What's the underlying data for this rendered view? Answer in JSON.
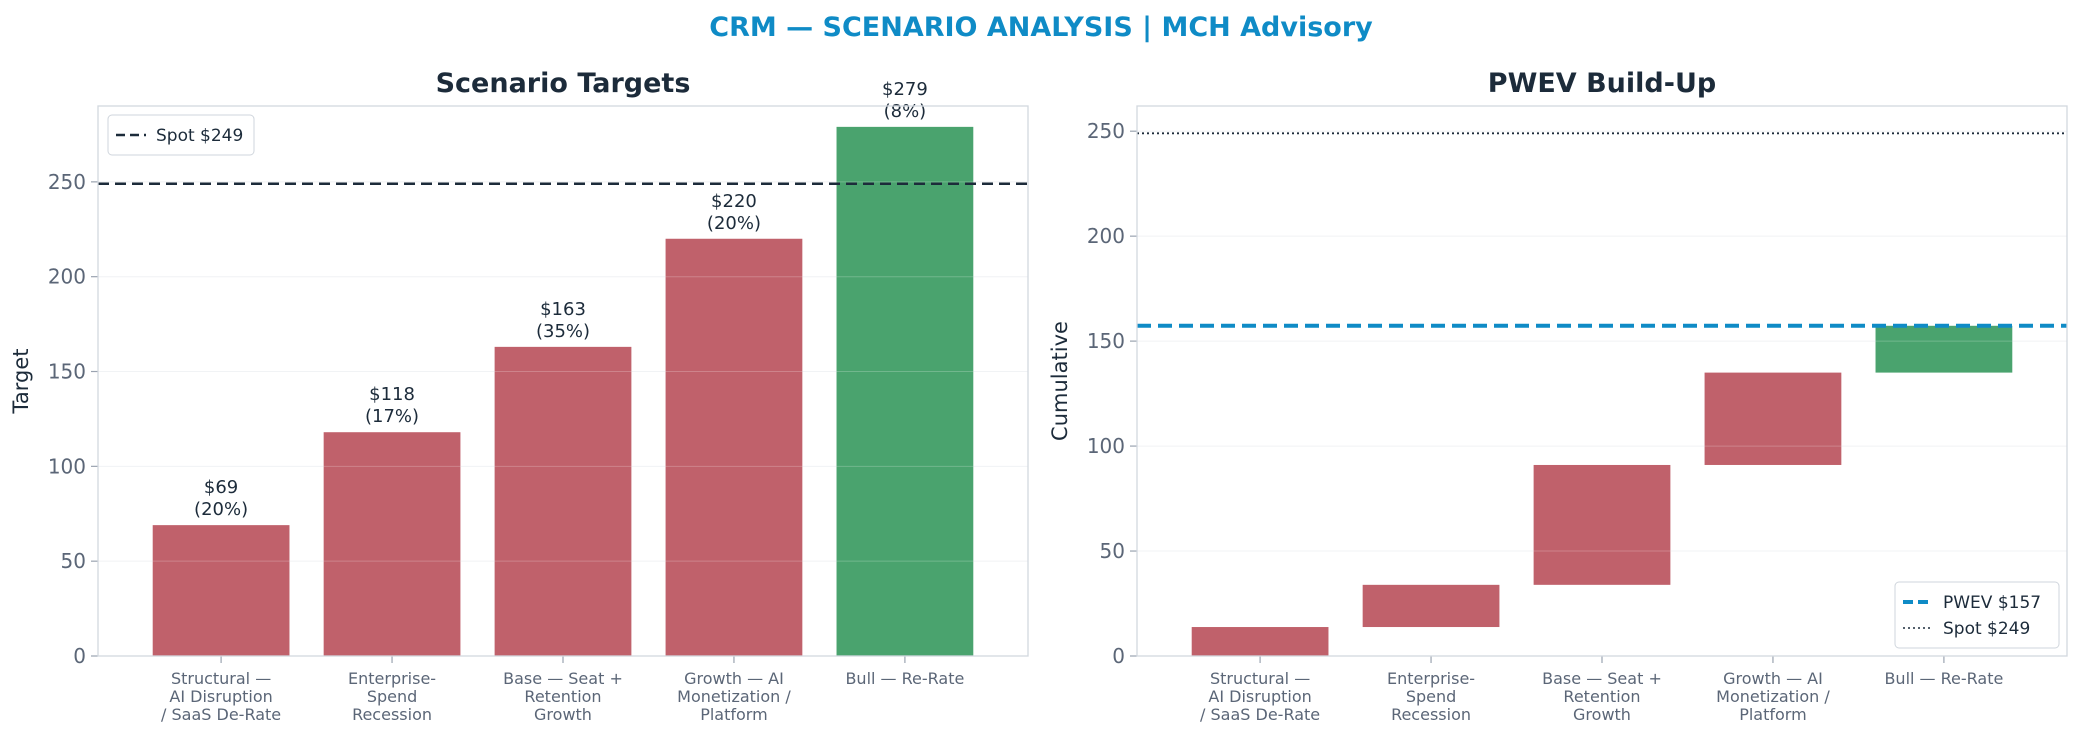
{
  "suptitle": "CRM — SCENARIO ANALYSIS | MCH Advisory",
  "colors": {
    "bear": "#c0616b",
    "bull": "#4aa36e",
    "spot": "#1c2b3a",
    "pwev": "#0f8bc6",
    "title": "#0f8bc6"
  },
  "chart_data": [
    {
      "type": "bar",
      "title": "Scenario Targets",
      "ylabel": "Target",
      "xlabel": "",
      "ylim": [
        0,
        290
      ],
      "yticks": [
        0,
        50,
        100,
        150,
        200,
        250
      ],
      "grid": true,
      "legend_position": "top-left",
      "categories": [
        [
          "Structural —",
          "AI Disruption",
          "/ SaaS De-Rate"
        ],
        [
          "Enterprise-",
          "Spend",
          "Recession"
        ],
        [
          "Base — Seat +",
          "Retention",
          "Growth"
        ],
        [
          "Growth — AI",
          "Monetization /",
          "Platform"
        ],
        [
          "Bull — Re-Rate"
        ]
      ],
      "values": [
        69,
        118,
        163,
        220,
        279
      ],
      "probabilities": [
        20,
        17,
        35,
        20,
        8
      ],
      "bar_labels": [
        [
          "$69",
          "(20%)"
        ],
        [
          "$118",
          "(17%)"
        ],
        [
          "$163",
          "(35%)"
        ],
        [
          "$220",
          "(20%)"
        ],
        [
          "$279",
          "(8%)"
        ]
      ],
      "bar_colors": [
        "bear",
        "bear",
        "bear",
        "bear",
        "bull"
      ],
      "reference_lines": [
        {
          "value": 249,
          "label": "Spot $249",
          "style": "dashed",
          "color": "spot"
        }
      ]
    },
    {
      "type": "bar",
      "subtype": "waterfall",
      "title": "PWEV Build-Up",
      "ylabel": "Cumulative",
      "xlabel": "",
      "ylim": [
        0,
        262
      ],
      "yticks": [
        0,
        50,
        100,
        150,
        200,
        250
      ],
      "grid": true,
      "legend_position": "bottom-right",
      "categories": [
        [
          "Structural —",
          "AI Disruption",
          "/ SaaS De-Rate"
        ],
        [
          "Enterprise-",
          "Spend",
          "Recession"
        ],
        [
          "Base — Seat +",
          "Retention",
          "Growth"
        ],
        [
          "Growth — AI",
          "Monetization /",
          "Platform"
        ],
        [
          "Bull — Re-Rate"
        ]
      ],
      "bottoms": [
        0,
        13.8,
        33.9,
        91,
        135
      ],
      "tops": [
        13.8,
        33.9,
        91,
        135,
        157.3
      ],
      "bar_colors": [
        "bear",
        "bear",
        "bear",
        "bear",
        "bull"
      ],
      "reference_lines": [
        {
          "value": 157.3,
          "label": "PWEV $157",
          "style": "dashed",
          "color": "pwev"
        },
        {
          "value": 249,
          "label": "Spot $249",
          "style": "dotted",
          "color": "spot"
        }
      ]
    }
  ]
}
